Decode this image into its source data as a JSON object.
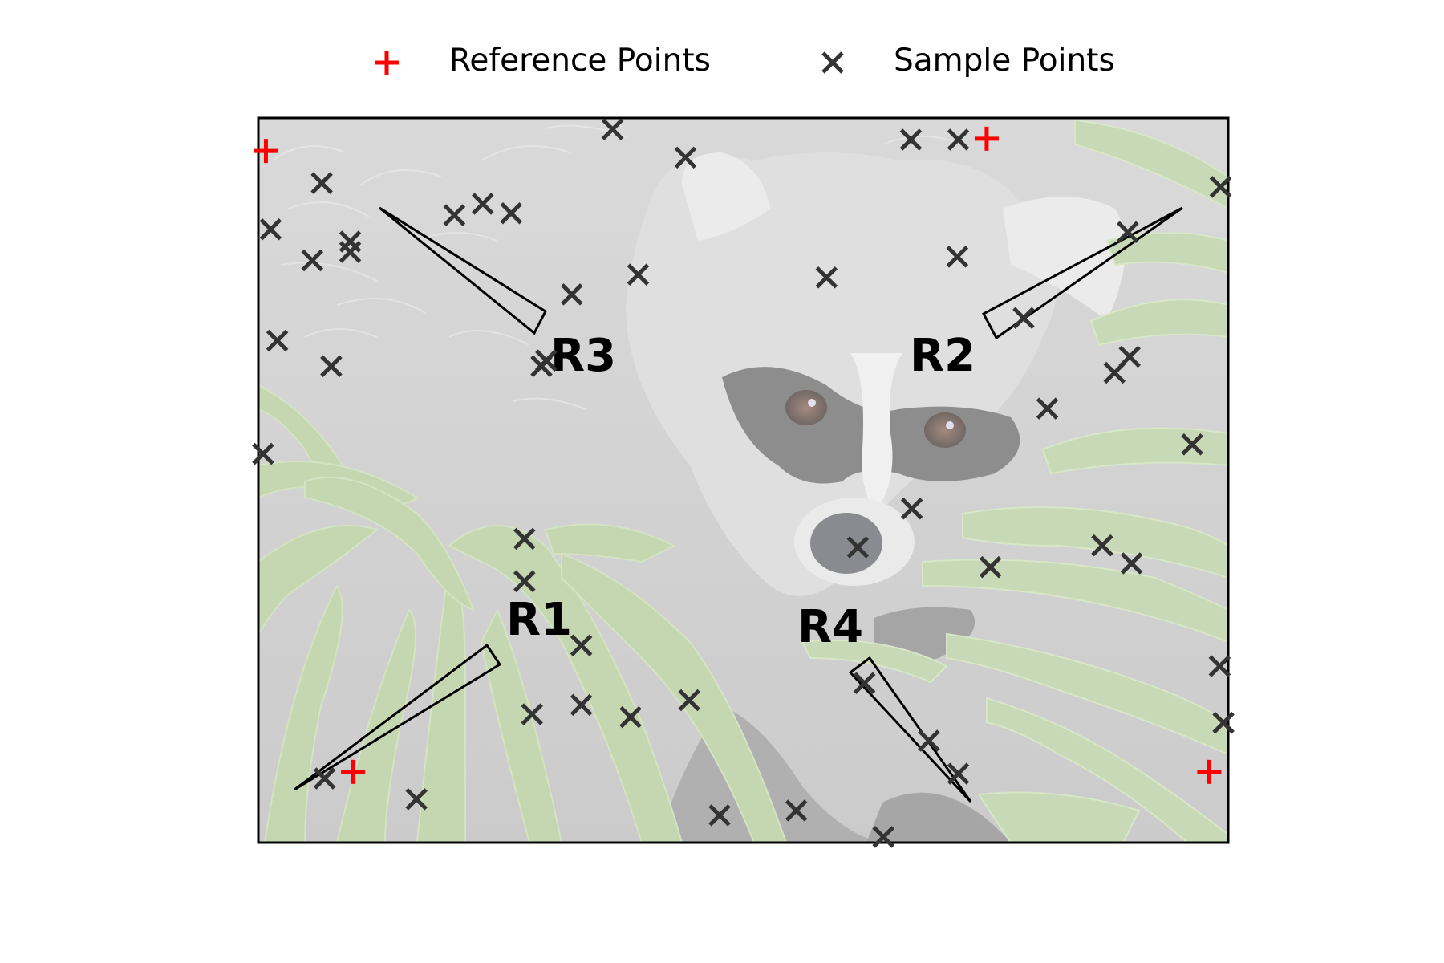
{
  "chart_data": {
    "type": "scatter",
    "title": "",
    "xlabel": "",
    "ylabel": "",
    "axes_visible": false,
    "background": "faded photograph of a raccoon among green palm leaves",
    "xlim": [
      0,
      1024
    ],
    "ylim": [
      768,
      0
    ],
    "legend": {
      "placement": "top-center",
      "entries": [
        {
          "label": "Reference Points",
          "marker": "plus",
          "color": "#ff0000"
        },
        {
          "label": "Sample Points",
          "marker": "x",
          "color": "#333333"
        }
      ]
    },
    "series": [
      {
        "name": "Reference Points",
        "marker": "plus",
        "color": "#ff0000",
        "points": [
          [
            100,
            75
          ],
          [
            1004,
            75
          ],
          [
            8,
            733
          ],
          [
            769,
            746
          ]
        ]
      },
      {
        "name": "Sample Points",
        "marker": "x",
        "color": "#333333",
        "points": [
          [
            70,
            68
          ],
          [
            167,
            46
          ],
          [
            487,
            29
          ],
          [
            568,
            34
          ],
          [
            660,
            6
          ],
          [
            739,
            73
          ],
          [
            708,
            108
          ],
          [
            289,
            136
          ],
          [
            341,
            146
          ],
          [
            393,
            133
          ],
          [
            455,
            151
          ],
          [
            640,
            169
          ],
          [
            341,
            209
          ],
          [
            1019,
            127
          ],
          [
            1015,
            187
          ],
          [
            281,
            277
          ],
          [
            281,
            322
          ],
          [
            633,
            313
          ],
          [
            773,
            292
          ],
          [
            690,
            354
          ],
          [
            891,
            315
          ],
          [
            922,
            296
          ],
          [
            5,
            412
          ],
          [
            986,
            422
          ],
          [
            833,
            460
          ],
          [
            299,
            505
          ],
          [
            304,
            511
          ],
          [
            904,
            498
          ],
          [
            920,
            515
          ],
          [
            77,
            505
          ],
          [
            20,
            532
          ],
          [
            808,
            556
          ],
          [
            331,
            581
          ],
          [
            401,
            602
          ],
          [
            600,
            599
          ],
          [
            738,
            621
          ],
          [
            57,
            617
          ],
          [
            97,
            626
          ],
          [
            97,
            637
          ],
          [
            13,
            650
          ],
          [
            207,
            665
          ],
          [
            237,
            677
          ],
          [
            267,
            667
          ],
          [
            918,
            647
          ],
          [
            1016,
            695
          ],
          [
            67,
            699
          ],
          [
            451,
            726
          ],
          [
            374,
            756
          ],
          [
            689,
            745
          ],
          [
            739,
            745
          ]
        ]
      }
    ],
    "annotations": [
      {
        "text": "R1",
        "points_to": [
          8,
          733
        ]
      },
      {
        "text": "R2",
        "points_to": [
          1004,
          75
        ]
      },
      {
        "text": "R3",
        "points_to": [
          100,
          75
        ]
      },
      {
        "text": "R4",
        "points_to": [
          769,
          746
        ]
      }
    ]
  }
}
